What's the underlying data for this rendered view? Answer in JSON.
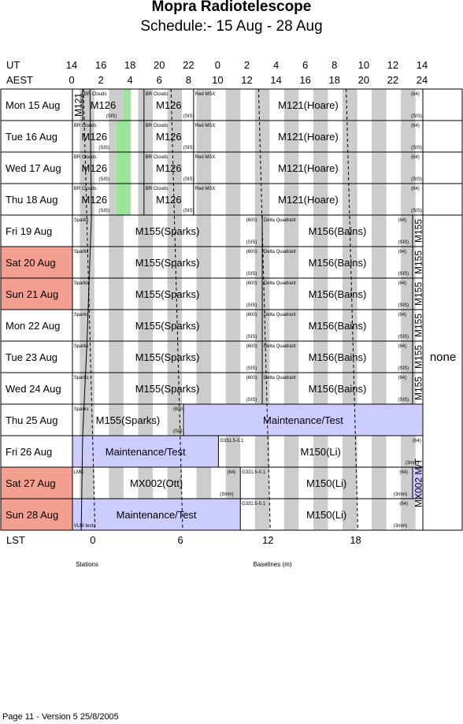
{
  "title": "Mopra Radiotelescope",
  "subtitle": "Schedule:- 15 Aug - 28 Aug",
  "footer": "Page 11 - Version 5  25/8/2005",
  "header": {
    "ut_label": "UT",
    "aest_label": "AEST",
    "lst_label": "LST",
    "ut_ticks": [
      "14",
      "16",
      "18",
      "20",
      "22",
      "0",
      "2",
      "4",
      "6",
      "8",
      "10",
      "12",
      "14"
    ],
    "aest_ticks": [
      "0",
      "2",
      "4",
      "6",
      "8",
      "10",
      "12",
      "14",
      "16",
      "18",
      "20",
      "22",
      "24"
    ],
    "lst_ticks": [
      {
        "label": "0",
        "aest": 1.5
      },
      {
        "label": "6",
        "aest": 7.5
      },
      {
        "label": "12",
        "aest": 13.5
      },
      {
        "label": "18",
        "aest": 19.5
      }
    ]
  },
  "bottom_labels": {
    "stations": "Stations",
    "baselines": "Baselines (m)"
  },
  "side_note": "none",
  "colors": {
    "weekend": "#f4a090",
    "grey": "#cccccc",
    "green": "#99e699",
    "maint": "#ccccff"
  },
  "chart_data": {
    "type": "table",
    "x_axis": "AEST hour",
    "xlim": [
      0,
      24
    ],
    "days": [
      {
        "label": "Mon  15 Aug",
        "weekend": false,
        "blocks": [
          {
            "text": "M121",
            "vertical": true,
            "start": 0,
            "end": 0.7
          },
          {
            "text": "M126",
            "start": 0.7,
            "end": 3.5
          },
          {
            "text": "M126",
            "start": 4.9,
            "end": 8.3
          },
          {
            "text": "M121(Hoare)",
            "start": 8.3,
            "end": 24
          }
        ],
        "notes": [
          {
            "text": "BR Clouds",
            "at": 0.8,
            "pos": "top"
          },
          {
            "text": "(SIS)",
            "at": 2.3,
            "pos": "bot"
          },
          {
            "text": "BR Clouds",
            "at": 5,
            "pos": "top"
          },
          {
            "text": "(SIS)",
            "at": 7.6,
            "pos": "bot"
          },
          {
            "text": "Red MSX",
            "at": 8.4,
            "pos": "top"
          },
          {
            "text": "(64)",
            "at": 23.2,
            "pos": "top"
          },
          {
            "text": "(SIS)",
            "at": 23.2,
            "pos": "bot"
          }
        ],
        "green": [
          [
            3.5,
            4.0
          ]
        ],
        "maint": []
      },
      {
        "label": "Tue   16 Aug",
        "weekend": false,
        "blocks": [
          {
            "text": "M126",
            "start": 0,
            "end": 3.0
          },
          {
            "text": "M126",
            "start": 4.9,
            "end": 8.3
          },
          {
            "text": "M121(Hoare)",
            "start": 8.3,
            "end": 24
          }
        ],
        "notes": [
          {
            "text": "BR Clouds",
            "at": 0.1,
            "pos": "top"
          },
          {
            "text": "(SIS)",
            "at": 1.8,
            "pos": "bot"
          },
          {
            "text": "BR Clouds",
            "at": 5,
            "pos": "top"
          },
          {
            "text": "(SIS)",
            "at": 7.6,
            "pos": "bot"
          },
          {
            "text": "Red MSX",
            "at": 8.4,
            "pos": "top"
          },
          {
            "text": "(64)",
            "at": 23.2,
            "pos": "top"
          },
          {
            "text": "(SIS)",
            "at": 23.2,
            "pos": "bot"
          }
        ],
        "green": [
          [
            3.0,
            4.0
          ]
        ],
        "maint": []
      },
      {
        "label": "Wed  17 Aug",
        "weekend": false,
        "blocks": [
          {
            "text": "M126",
            "start": 0,
            "end": 3.0
          },
          {
            "text": "M126",
            "start": 4.9,
            "end": 8.3
          },
          {
            "text": "M121(Hoare)",
            "start": 8.3,
            "end": 24
          }
        ],
        "notes": [
          {
            "text": "BR Clouds",
            "at": 0.1,
            "pos": "top"
          },
          {
            "text": "(SIS)",
            "at": 1.8,
            "pos": "bot"
          },
          {
            "text": "BR Clouds",
            "at": 5,
            "pos": "top"
          },
          {
            "text": "(SIS)",
            "at": 7.6,
            "pos": "bot"
          },
          {
            "text": "Red MSX",
            "at": 8.4,
            "pos": "top"
          },
          {
            "text": "(64)",
            "at": 23.2,
            "pos": "top"
          },
          {
            "text": "(SIS)",
            "at": 23.2,
            "pos": "bot"
          }
        ],
        "green": [
          [
            3.0,
            4.0
          ]
        ],
        "maint": []
      },
      {
        "label": "Thu   18 Aug",
        "weekend": false,
        "blocks": [
          {
            "text": "M126",
            "start": 0,
            "end": 3.0
          },
          {
            "text": "M126",
            "start": 4.9,
            "end": 8.3
          },
          {
            "text": "M121(Hoare)",
            "start": 8.3,
            "end": 24
          }
        ],
        "notes": [
          {
            "text": "BR Clouds",
            "at": 0.1,
            "pos": "top"
          },
          {
            "text": "(SIS)",
            "at": 1.8,
            "pos": "bot"
          },
          {
            "text": "BR Clouds",
            "at": 5,
            "pos": "top"
          },
          {
            "text": "(SIS)",
            "at": 7.6,
            "pos": "bot"
          },
          {
            "text": "Red MSX",
            "at": 8.4,
            "pos": "top"
          },
          {
            "text": "(64)",
            "at": 23.2,
            "pos": "top"
          },
          {
            "text": "(SIS)",
            "at": 23.2,
            "pos": "bot"
          }
        ],
        "green": [
          [
            3.0,
            4.0
          ]
        ],
        "maint": []
      },
      {
        "label": "Fri     19 Aug",
        "weekend": false,
        "blocks": [
          {
            "text": "M155(Sparks)",
            "start": 0,
            "end": 13.0
          },
          {
            "text": "M156(Bains)",
            "start": 13.0,
            "end": 23.3
          },
          {
            "text": "M155",
            "vertical": true,
            "start": 23.3,
            "end": 24
          }
        ],
        "notes": [
          {
            "text": "Sparks",
            "at": 0.1,
            "pos": "top"
          },
          {
            "text": "(600)",
            "at": 11.9,
            "pos": "top"
          },
          {
            "text": "(SIS)",
            "at": 11.9,
            "pos": "bot"
          },
          {
            "text": "Delta Quadrant",
            "at": 13.1,
            "pos": "top"
          },
          {
            "text": "(64)",
            "at": 22.3,
            "pos": "top"
          },
          {
            "text": "(SIS)",
            "at": 22.3,
            "pos": "bot"
          }
        ],
        "green": [],
        "maint": []
      },
      {
        "label": "Sat   20 Aug",
        "weekend": true,
        "blocks": [
          {
            "text": "M155(Sparks)",
            "start": 0,
            "end": 13.0
          },
          {
            "text": "M156(Bains)",
            "start": 13.0,
            "end": 23.3
          },
          {
            "text": "M155",
            "vertical": true,
            "start": 23.3,
            "end": 24
          }
        ],
        "notes": [
          {
            "text": "Sparks",
            "at": 0.1,
            "pos": "top"
          },
          {
            "text": "(600)",
            "at": 11.9,
            "pos": "top"
          },
          {
            "text": "(SIS)",
            "at": 11.9,
            "pos": "bot"
          },
          {
            "text": "Delta Quadrant",
            "at": 13.1,
            "pos": "top"
          },
          {
            "text": "(64)",
            "at": 22.3,
            "pos": "top"
          },
          {
            "text": "(SIS)",
            "at": 22.3,
            "pos": "bot"
          }
        ],
        "green": [],
        "maint": []
      },
      {
        "label": "Sun   21 Aug",
        "weekend": true,
        "blocks": [
          {
            "text": "M155(Sparks)",
            "start": 0,
            "end": 13.0
          },
          {
            "text": "M156(Bains)",
            "start": 13.0,
            "end": 23.3
          },
          {
            "text": "M155",
            "vertical": true,
            "start": 23.3,
            "end": 24
          }
        ],
        "notes": [
          {
            "text": "Sparks",
            "at": 0.1,
            "pos": "top"
          },
          {
            "text": "(600)",
            "at": 11.9,
            "pos": "top"
          },
          {
            "text": "(SIS)",
            "at": 11.9,
            "pos": "bot"
          },
          {
            "text": "Delta Quadrant",
            "at": 13.1,
            "pos": "top"
          },
          {
            "text": "(64)",
            "at": 22.3,
            "pos": "top"
          },
          {
            "text": "(SIS)",
            "at": 22.3,
            "pos": "bot"
          }
        ],
        "green": [],
        "maint": []
      },
      {
        "label": "Mon  22 Aug",
        "weekend": false,
        "blocks": [
          {
            "text": "M155(Sparks)",
            "start": 0,
            "end": 13.0
          },
          {
            "text": "M156(Bains)",
            "start": 13.0,
            "end": 23.3
          },
          {
            "text": "M155",
            "vertical": true,
            "start": 23.3,
            "end": 24
          }
        ],
        "notes": [
          {
            "text": "Sparks",
            "at": 0.1,
            "pos": "top"
          },
          {
            "text": "(600)",
            "at": 11.9,
            "pos": "top"
          },
          {
            "text": "(SIS)",
            "at": 11.9,
            "pos": "bot"
          },
          {
            "text": "Delta Quadrant",
            "at": 13.1,
            "pos": "top"
          },
          {
            "text": "(64)",
            "at": 22.3,
            "pos": "top"
          },
          {
            "text": "(SIS)",
            "at": 22.3,
            "pos": "bot"
          }
        ],
        "green": [],
        "maint": []
      },
      {
        "label": "Tue   23 Aug",
        "weekend": false,
        "blocks": [
          {
            "text": "M155(Sparks)",
            "start": 0,
            "end": 13.0
          },
          {
            "text": "M156(Bains)",
            "start": 13.0,
            "end": 23.3
          },
          {
            "text": "M155",
            "vertical": true,
            "start": 23.3,
            "end": 24
          }
        ],
        "notes": [
          {
            "text": "Sparks",
            "at": 0.1,
            "pos": "top"
          },
          {
            "text": "(600)",
            "at": 11.9,
            "pos": "top"
          },
          {
            "text": "(SIS)",
            "at": 11.9,
            "pos": "bot"
          },
          {
            "text": "Delta Quadrant",
            "at": 13.1,
            "pos": "top"
          },
          {
            "text": "(64)",
            "at": 22.3,
            "pos": "top"
          },
          {
            "text": "(SIS)",
            "at": 22.3,
            "pos": "bot"
          }
        ],
        "green": [],
        "maint": []
      },
      {
        "label": "Wed  24 Aug",
        "weekend": false,
        "blocks": [
          {
            "text": "M155(Sparks)",
            "start": 0,
            "end": 13.0
          },
          {
            "text": "M156(Bains)",
            "start": 13.0,
            "end": 23.3
          },
          {
            "text": "M155",
            "vertical": true,
            "start": 23.3,
            "end": 24
          }
        ],
        "notes": [
          {
            "text": "Sparks",
            "at": 0.1,
            "pos": "top"
          },
          {
            "text": "(600)",
            "at": 11.9,
            "pos": "top"
          },
          {
            "text": "(SIS)",
            "at": 11.9,
            "pos": "bot"
          },
          {
            "text": "Delta Quadrant",
            "at": 13.1,
            "pos": "top"
          },
          {
            "text": "(64)",
            "at": 22.3,
            "pos": "top"
          },
          {
            "text": "(SIS)",
            "at": 22.3,
            "pos": "bot"
          }
        ],
        "green": [],
        "maint": []
      },
      {
        "label": "Thu   25 Aug",
        "weekend": false,
        "blocks": [
          {
            "text": "M155(Sparks)",
            "start": 0,
            "end": 7.6
          },
          {
            "text": "Maintenance/Test",
            "start": 7.6,
            "end": 24
          }
        ],
        "notes": [
          {
            "text": "Sparks",
            "at": 0.1,
            "pos": "top"
          },
          {
            "text": "(600)",
            "at": 6.9,
            "pos": "top"
          },
          {
            "text": "(SIS)",
            "at": 6.9,
            "pos": "bot"
          }
        ],
        "green": [],
        "maint": [
          [
            7.6,
            24
          ]
        ]
      },
      {
        "label": "Fri     26 Aug",
        "weekend": false,
        "blocks": [
          {
            "text": "Maintenance/Test",
            "start": 0,
            "end": 10.0
          },
          {
            "text": "M150(Li)",
            "start": 10.0,
            "end": 24
          }
        ],
        "notes": [
          {
            "text": "G331.5-0.1",
            "at": 10.1,
            "pos": "top"
          },
          {
            "text": "(64)",
            "at": 23.3,
            "pos": "top"
          },
          {
            "text": "(3mm)",
            "at": 22.8,
            "pos": "bot"
          }
        ],
        "green": [],
        "maint": [
          [
            0,
            10.0
          ]
        ]
      },
      {
        "label": "Sat   27 Aug",
        "weekend": true,
        "blocks": [
          {
            "text": "MX002(Ott)",
            "start": 0,
            "end": 11.5
          },
          {
            "text": "M150(Li)",
            "start": 11.5,
            "end": 23.3
          },
          {
            "text": "MX002 M/T",
            "vertical": true,
            "start": 23.3,
            "end": 24
          }
        ],
        "notes": [
          {
            "text": "LMC",
            "at": 0.1,
            "pos": "top"
          },
          {
            "text": "(64)",
            "at": 10.6,
            "pos": "top"
          },
          {
            "text": "(3mm)",
            "at": 10.1,
            "pos": "bot"
          },
          {
            "text": "G331.5-0.1",
            "at": 11.6,
            "pos": "top"
          },
          {
            "text": "(64)",
            "at": 22.4,
            "pos": "top"
          },
          {
            "text": "(3mm)",
            "at": 22.0,
            "pos": "bot"
          }
        ],
        "green": [],
        "maint": [
          [
            23.3,
            24
          ]
        ]
      },
      {
        "label": "Sun   28 Aug",
        "weekend": true,
        "blocks": [
          {
            "text": "Maintenance/Test",
            "start": 0,
            "end": 11.5
          },
          {
            "text": "M150(Li)",
            "start": 11.5,
            "end": 23.3
          }
        ],
        "notes": [
          {
            "text": "VLBI tests",
            "at": 0.1,
            "pos": "bot"
          },
          {
            "text": "G331.5-0.1",
            "at": 11.6,
            "pos": "top"
          },
          {
            "text": "(64)",
            "at": 22.4,
            "pos": "top"
          },
          {
            "text": "(3mm)",
            "at": 22.0,
            "pos": "bot"
          }
        ],
        "green": [],
        "maint": [
          [
            0,
            11.5
          ]
        ]
      }
    ],
    "grey_columns_aest": [
      1,
      3,
      5,
      7,
      9,
      11,
      13,
      15,
      17,
      19,
      21,
      23
    ],
    "none_span": {
      "text": "none",
      "first_day": 4,
      "last_day": 13
    }
  }
}
